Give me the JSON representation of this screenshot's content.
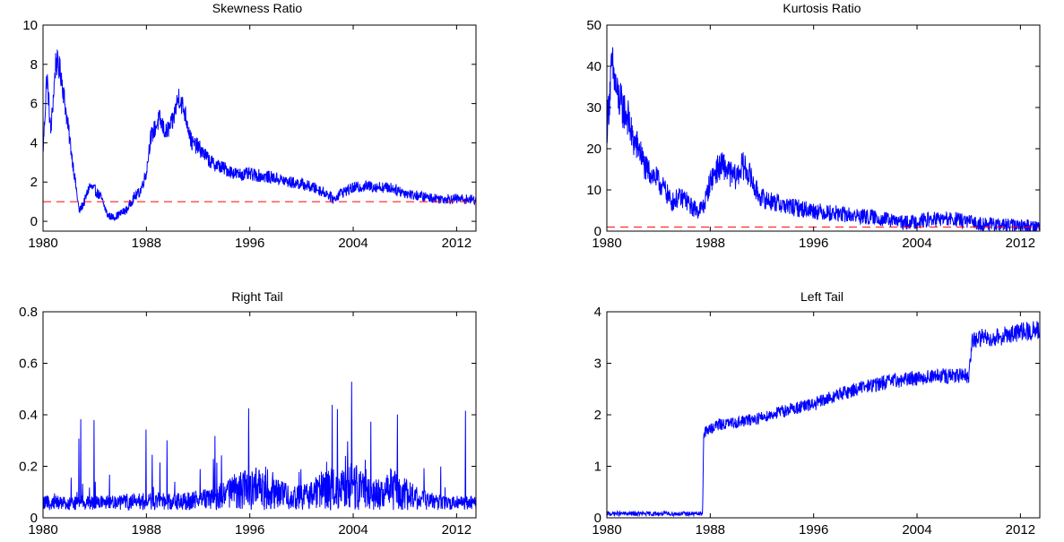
{
  "chart_data": [
    {
      "type": "line",
      "title": "Skewness Ratio",
      "xlim": [
        1980,
        2013.5
      ],
      "ylim": [
        -0.5,
        10
      ],
      "xticks": [
        1980,
        1988,
        1996,
        2004,
        2012
      ],
      "yticks": [
        0,
        2,
        4,
        6,
        8,
        10
      ],
      "xtick_labels": [
        "1980",
        "1988",
        "1996",
        "2004",
        "2012"
      ],
      "ytick_labels": [
        "0",
        "2",
        "4",
        "6",
        "8",
        "10"
      ],
      "series": [
        {
          "color": "#0000ff",
          "noise": 0.35,
          "x": [
            1980,
            1980.3,
            1980.6,
            1981,
            1981.4,
            1981.8,
            1982.2,
            1982.5,
            1982.8,
            1983.2,
            1983.6,
            1984,
            1984.5,
            1985,
            1985.5,
            1986,
            1986.5,
            1987,
            1987.5,
            1988,
            1988.3,
            1988.7,
            1989,
            1989.5,
            1990,
            1990.5,
            1991,
            1991.5,
            1992,
            1993,
            1994,
            1995,
            1996,
            1997,
            1998,
            1999,
            2000,
            2001,
            2002,
            2002.5,
            2003,
            2004,
            2005,
            2006,
            2007,
            2008,
            2009,
            2010,
            2011,
            2012,
            2013.5
          ],
          "y": [
            3.5,
            7.5,
            4.5,
            8.2,
            7.5,
            5.5,
            3.5,
            2.0,
            0.5,
            1.0,
            1.8,
            1.6,
            1.2,
            0.3,
            0.2,
            0.4,
            0.6,
            1.2,
            1.5,
            2.5,
            4.2,
            4.8,
            5.2,
            4.5,
            5.0,
            6.4,
            5.5,
            4.0,
            3.8,
            3.0,
            2.7,
            2.4,
            2.4,
            2.3,
            2.2,
            2.0,
            1.9,
            1.7,
            1.4,
            1.1,
            1.45,
            1.7,
            1.8,
            1.75,
            1.7,
            1.45,
            1.3,
            1.2,
            1.15,
            1.15,
            1.1
          ]
        },
        {
          "color": "#ff0000",
          "dashed": true,
          "x": [
            1980,
            2013.5
          ],
          "y": [
            1,
            1
          ]
        }
      ]
    },
    {
      "type": "line",
      "title": "Kurtosis Ratio",
      "xlim": [
        1980,
        2013.5
      ],
      "ylim": [
        0,
        50
      ],
      "xticks": [
        1980,
        1988,
        1996,
        2004,
        2012
      ],
      "yticks": [
        0,
        10,
        20,
        30,
        40,
        50
      ],
      "xtick_labels": [
        "1980",
        "1988",
        "1996",
        "2004",
        "2012"
      ],
      "ytick_labels": [
        "0",
        "10",
        "20",
        "30",
        "40",
        "50"
      ],
      "series": [
        {
          "color": "#0000ff",
          "noise": 3.0,
          "x": [
            1980,
            1980.4,
            1980.8,
            1981.2,
            1981.6,
            1982,
            1982.5,
            1983,
            1983.5,
            1984,
            1984.5,
            1985,
            1985.5,
            1986,
            1986.5,
            1987,
            1987.5,
            1988,
            1988.5,
            1989,
            1989.5,
            1990,
            1990.5,
            1991,
            1991.5,
            1992,
            1993,
            1994,
            1995,
            1996,
            1997,
            1998,
            1999,
            2000,
            2001,
            2002,
            2003,
            2004,
            2005,
            2006,
            2007,
            2008,
            2009,
            2010,
            2011,
            2012,
            2013.5
          ],
          "y": [
            25,
            40,
            33,
            30,
            28,
            22,
            20,
            15,
            14,
            12,
            10,
            7,
            8,
            8,
            6,
            5,
            6,
            12,
            15,
            16,
            14,
            13,
            16,
            14,
            10,
            8,
            7,
            6,
            5.5,
            5,
            4.5,
            4.2,
            3.8,
            3.5,
            3.2,
            2.6,
            2.0,
            2.4,
            2.8,
            2.9,
            2.8,
            2.2,
            1.8,
            1.5,
            1.4,
            1.3,
            1.2
          ]
        },
        {
          "color": "#ff0000",
          "dashed": true,
          "x": [
            1980,
            2013.5
          ],
          "y": [
            1,
            1
          ]
        }
      ]
    },
    {
      "type": "line",
      "title": "Right Tail",
      "xlim": [
        1980,
        2013.5
      ],
      "ylim": [
        0,
        0.8
      ],
      "xticks": [
        1980,
        1988,
        1996,
        2004,
        2012
      ],
      "yticks": [
        0,
        0.2,
        0.4,
        0.6,
        0.8
      ],
      "xtick_labels": [
        "1980",
        "1988",
        "1996",
        "2004",
        "2012"
      ],
      "ytick_labels": [
        "0",
        "0.2",
        "0.4",
        "0.6",
        "0.8"
      ],
      "series": [
        {
          "color": "#0000ff",
          "noise": 0.09,
          "floor": 0.03,
          "x": [
            1980,
            1984,
            1988,
            1991,
            1993,
            1994.5,
            1995,
            1996,
            1997,
            1998,
            1999,
            2000,
            2001,
            2002,
            2003,
            2004,
            2005,
            2006,
            2007,
            2008,
            2009,
            2010,
            2011,
            2012,
            2013.5
          ],
          "y": [
            0.07,
            0.07,
            0.08,
            0.08,
            0.09,
            0.12,
            0.14,
            0.14,
            0.16,
            0.13,
            0.1,
            0.1,
            0.12,
            0.14,
            0.16,
            0.17,
            0.12,
            0.12,
            0.15,
            0.12,
            0.1,
            0.08,
            0.07,
            0.07,
            0.07
          ]
        }
      ]
    },
    {
      "type": "line",
      "title": "Left Tail",
      "xlim": [
        1980,
        2013.5
      ],
      "ylim": [
        0,
        4
      ],
      "xticks": [
        1980,
        1988,
        1996,
        2004,
        2012
      ],
      "yticks": [
        0,
        1,
        2,
        3,
        4
      ],
      "xtick_labels": [
        "1980",
        "1988",
        "1996",
        "2004",
        "2012"
      ],
      "ytick_labels": [
        "0",
        "1",
        "2",
        "3",
        "4"
      ],
      "series": [
        {
          "color": "#0000ff",
          "noise": 0.08,
          "x": [
            1980,
            1987.4,
            1987.5,
            1988.5,
            1990,
            1992,
            1994,
            1996,
            1998,
            2000,
            2002,
            2004,
            2006,
            2008,
            2008.3,
            2009,
            2010,
            2011,
            2012,
            2013.5
          ],
          "y": [
            0.08,
            0.08,
            1.65,
            1.8,
            1.85,
            1.95,
            2.1,
            2.2,
            2.4,
            2.55,
            2.65,
            2.72,
            2.75,
            2.75,
            3.45,
            3.5,
            3.5,
            3.55,
            3.6,
            3.65
          ]
        }
      ]
    }
  ]
}
